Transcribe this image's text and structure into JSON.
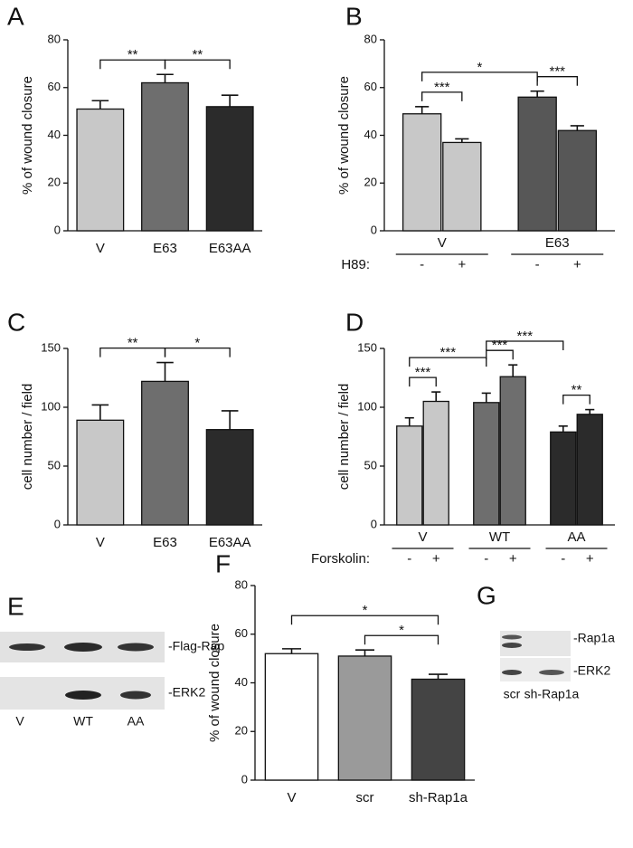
{
  "chart_data": [
    {
      "type": "bar",
      "panel": "A",
      "ylabel": "% of wound closure",
      "categories": [
        "V",
        "E63",
        "E63AA"
      ],
      "values": [
        51,
        62,
        52
      ],
      "errors": [
        3.5,
        3.5,
        4.8
      ],
      "colors": [
        "#c8c8c8",
        "#6e6e6e",
        "#2b2b2b"
      ],
      "ylim": [
        0,
        80
      ],
      "yticks": [
        0,
        20,
        40,
        60,
        80
      ],
      "brackets": [
        {
          "bars": [
            0,
            1
          ],
          "label": "**"
        },
        {
          "bars": [
            1,
            2
          ],
          "label": "**"
        }
      ]
    },
    {
      "type": "bar",
      "panel": "B",
      "ylabel": "% of wound closure",
      "groups": [
        "V",
        "E63"
      ],
      "factor_label": "H89:",
      "categories": [
        "-",
        "+",
        "-",
        "+"
      ],
      "values": [
        49,
        37,
        56,
        42
      ],
      "errors": [
        3,
        1.5,
        2.5,
        2
      ],
      "colors": [
        "#c8c8c8",
        "#c8c8c8",
        "#575757",
        "#575757"
      ],
      "ylim": [
        0,
        80
      ],
      "yticks": [
        0,
        20,
        40,
        60,
        80
      ],
      "brackets": [
        {
          "bars": [
            0,
            1
          ],
          "label": "***"
        },
        {
          "bars": [
            2,
            3
          ],
          "label": "***"
        },
        {
          "bars": [
            0,
            2
          ],
          "label": "*"
        }
      ]
    },
    {
      "type": "bar",
      "panel": "C",
      "ylabel": "cell number / field",
      "categories": [
        "V",
        "E63",
        "E63AA"
      ],
      "values": [
        89,
        122,
        81
      ],
      "errors": [
        13,
        16,
        16
      ],
      "colors": [
        "#c8c8c8",
        "#6e6e6e",
        "#2b2b2b"
      ],
      "ylim": [
        0,
        150
      ],
      "yticks": [
        0,
        50,
        100,
        150
      ],
      "brackets": [
        {
          "bars": [
            0,
            1
          ],
          "label": "**"
        },
        {
          "bars": [
            1,
            2
          ],
          "label": "*"
        }
      ]
    },
    {
      "type": "bar",
      "panel": "D",
      "ylabel": "cell number / field",
      "groups": [
        "V",
        "WT",
        "AA"
      ],
      "factor_label": "Forskolin:",
      "categories": [
        "-",
        "+",
        "-",
        "+",
        "-",
        "+"
      ],
      "values": [
        84,
        105,
        104,
        126,
        79,
        94
      ],
      "errors": [
        7,
        8,
        8,
        10,
        5,
        4
      ],
      "colors": [
        "#c8c8c8",
        "#c8c8c8",
        "#6e6e6e",
        "#6e6e6e",
        "#2b2b2b",
        "#2b2b2b"
      ],
      "ylim": [
        0,
        150
      ],
      "yticks": [
        0,
        50,
        100,
        150
      ],
      "brackets": [
        {
          "bars": [
            0,
            1
          ],
          "label": "***"
        },
        {
          "bars": [
            2,
            3
          ],
          "label": "***"
        },
        {
          "bars": [
            4,
            5
          ],
          "label": "**"
        },
        {
          "bars": [
            0,
            2
          ],
          "label": "***"
        },
        {
          "bars": [
            2,
            4
          ],
          "label": "***"
        }
      ]
    },
    {
      "type": "bar",
      "panel": "F",
      "ylabel": "% of wound closure",
      "categories": [
        "V",
        "scr",
        "sh-Rap1a"
      ],
      "values": [
        52,
        51,
        41.5
      ],
      "errors": [
        2,
        2.5,
        2
      ],
      "colors": [
        "#ffffff",
        "#9a9a9a",
        "#444444"
      ],
      "ylim": [
        0,
        80
      ],
      "yticks": [
        0,
        20,
        40,
        60,
        80
      ],
      "brackets": [
        {
          "bars": [
            1,
            2
          ],
          "label": "*"
        },
        {
          "bars": [
            0,
            2
          ],
          "label": "*"
        }
      ]
    }
  ],
  "blots": [
    {
      "panel": "E",
      "bands": [
        "-Flag-Rap",
        "-ERK2"
      ],
      "lanes": [
        "V",
        "WT",
        "AA"
      ]
    },
    {
      "panel": "G",
      "bands": [
        "-Rap1a",
        "-ERK2"
      ],
      "lanes": [
        "scr",
        "sh-Rap1a"
      ]
    }
  ]
}
